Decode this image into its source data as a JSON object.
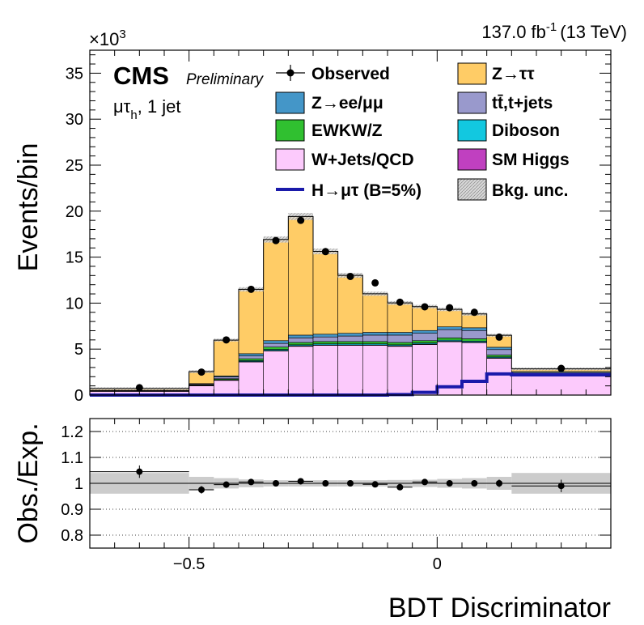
{
  "chart_data": [
    {
      "type": "bar",
      "stacked": true,
      "title": "",
      "lumi_text": "137.0 fb-1 (13 TeV)",
      "lumi_value": "137.0 fb",
      "lumi_exp": "-1",
      "lumi_energy": "(13 TeV)",
      "cms_label": "CMS",
      "cms_sub": "Preliminary",
      "channel_main": "μτ",
      "channel_sub": "h",
      "channel_jets": ", 1 jet",
      "scale_prefix": "×10",
      "scale_exp": "3",
      "ylabel": "Events/bin",
      "xlabel": "BDT Discriminator",
      "xlim": [
        -0.7,
        0.35
      ],
      "ylim": [
        0,
        37.5
      ],
      "yticks": [
        0,
        5,
        10,
        15,
        20,
        25,
        30,
        35
      ],
      "xticks": [
        -0.5,
        0
      ],
      "bin_edges": [
        -0.7,
        -0.5,
        -0.45,
        -0.4,
        -0.35,
        -0.3,
        -0.25,
        -0.2,
        -0.15,
        -0.1,
        -0.05,
        0.0,
        0.05,
        0.1,
        0.15,
        0.35
      ],
      "series": [
        {
          "name": "W+Jets/QCD",
          "color": "#fccafc",
          "values": [
            0.4,
            1.0,
            1.6,
            3.6,
            4.8,
            5.3,
            5.4,
            5.4,
            5.4,
            5.3,
            5.5,
            5.8,
            5.7,
            4.0,
            2.1
          ]
        },
        {
          "name": "SM Higgs",
          "color": "#c040c0",
          "values": [
            0.0,
            0.02,
            0.03,
            0.05,
            0.05,
            0.05,
            0.05,
            0.05,
            0.05,
            0.05,
            0.05,
            0.05,
            0.05,
            0.05,
            0.05
          ]
        },
        {
          "name": "Diboson",
          "color": "#12c8e0",
          "values": [
            0.0,
            0.03,
            0.05,
            0.1,
            0.12,
            0.12,
            0.12,
            0.12,
            0.12,
            0.12,
            0.12,
            0.12,
            0.12,
            0.1,
            0.05
          ]
        },
        {
          "name": "EWKW/Z",
          "color": "#30c030",
          "values": [
            0.05,
            0.05,
            0.1,
            0.2,
            0.25,
            0.25,
            0.25,
            0.25,
            0.25,
            0.25,
            0.25,
            0.25,
            0.25,
            0.2,
            0.05
          ]
        },
        {
          "name": "tt̄,t+jets",
          "color": "#9999cc",
          "values": [
            0.05,
            0.1,
            0.2,
            0.3,
            0.4,
            0.5,
            0.5,
            0.6,
            0.7,
            0.8,
            0.8,
            0.9,
            0.9,
            0.6,
            0.2
          ]
        },
        {
          "name": "Z→ee/μμ",
          "color": "#4496c8",
          "values": [
            0.0,
            0.05,
            0.1,
            0.25,
            0.3,
            0.3,
            0.3,
            0.3,
            0.3,
            0.3,
            0.3,
            0.3,
            0.3,
            0.25,
            0.1
          ]
        },
        {
          "name": "Z→ττ",
          "color": "#ffcc66",
          "values": [
            0.2,
            1.3,
            3.9,
            7.0,
            11.0,
            12.9,
            9.0,
            6.3,
            4.2,
            3.2,
            2.6,
            1.9,
            1.5,
            1.3,
            0.3
          ]
        }
      ],
      "signal": {
        "name": "H→μτ (B=5%)",
        "color": "#1a1aaa",
        "values": [
          0.0,
          0.0,
          0.0,
          0.0,
          0.0,
          0.0,
          0.0,
          0.0,
          0.0,
          0.05,
          0.3,
          0.9,
          1.5,
          2.3,
          2.2
        ]
      },
      "observed": {
        "name": "Observed",
        "x": [
          -0.6,
          -0.475,
          -0.425,
          -0.375,
          -0.325,
          -0.275,
          -0.225,
          -0.175,
          -0.125,
          -0.075,
          -0.025,
          0.025,
          0.075,
          0.125,
          0.25
        ],
        "values": [
          0.8,
          2.5,
          6.0,
          11.5,
          16.8,
          19.0,
          15.6,
          12.9,
          12.2,
          10.1,
          9.6,
          9.5,
          9.0,
          6.3,
          2.9
        ]
      },
      "uncertainty": {
        "name": "Bkg. unc."
      },
      "legend": [
        {
          "key": "observed",
          "label": "Observed"
        },
        {
          "key": "ztt",
          "label": "Z→ττ"
        },
        {
          "key": "zll",
          "label": "Z→ee/μμ"
        },
        {
          "key": "tt",
          "label": "tt̄,t+jets"
        },
        {
          "key": "ewk",
          "label": "EWKW/Z"
        },
        {
          "key": "vv",
          "label": "Diboson"
        },
        {
          "key": "wjets",
          "label": "W+Jets/QCD"
        },
        {
          "key": "higgs",
          "label": "SM Higgs"
        },
        {
          "key": "signal",
          "label": "H→μτ (B=5%)"
        },
        {
          "key": "unc",
          "label": "Bkg. unc."
        }
      ],
      "legend_placement": "top-right"
    },
    {
      "type": "scatter",
      "ylabel": "Obs./Exp.",
      "xlabel": "BDT Discriminator",
      "xlim": [
        -0.7,
        0.35
      ],
      "ylim": [
        0.75,
        1.25
      ],
      "yticks": [
        0.8,
        0.9,
        1,
        1.1,
        1.2
      ],
      "ytick_labels": [
        "0.8",
        "0.9",
        "1",
        "1.1",
        "1.2"
      ],
      "xticks": [
        -0.5,
        0
      ],
      "xtick_labels": [
        "−0.5",
        "0"
      ],
      "grid": true,
      "x": [
        -0.6,
        -0.475,
        -0.425,
        -0.375,
        -0.325,
        -0.275,
        -0.225,
        -0.175,
        -0.125,
        -0.075,
        -0.025,
        0.025,
        0.075,
        0.125,
        0.25
      ],
      "values": [
        1.045,
        0.975,
        0.995,
        1.005,
        1.0,
        1.008,
        1.0,
        1.0,
        0.996,
        0.985,
        1.005,
        1.0,
        1.0,
        1.0,
        0.99
      ],
      "unc_band": [
        0.04,
        0.025,
        0.02,
        0.015,
        0.012,
        0.012,
        0.012,
        0.012,
        0.012,
        0.013,
        0.014,
        0.017,
        0.02,
        0.025,
        0.04
      ]
    }
  ]
}
